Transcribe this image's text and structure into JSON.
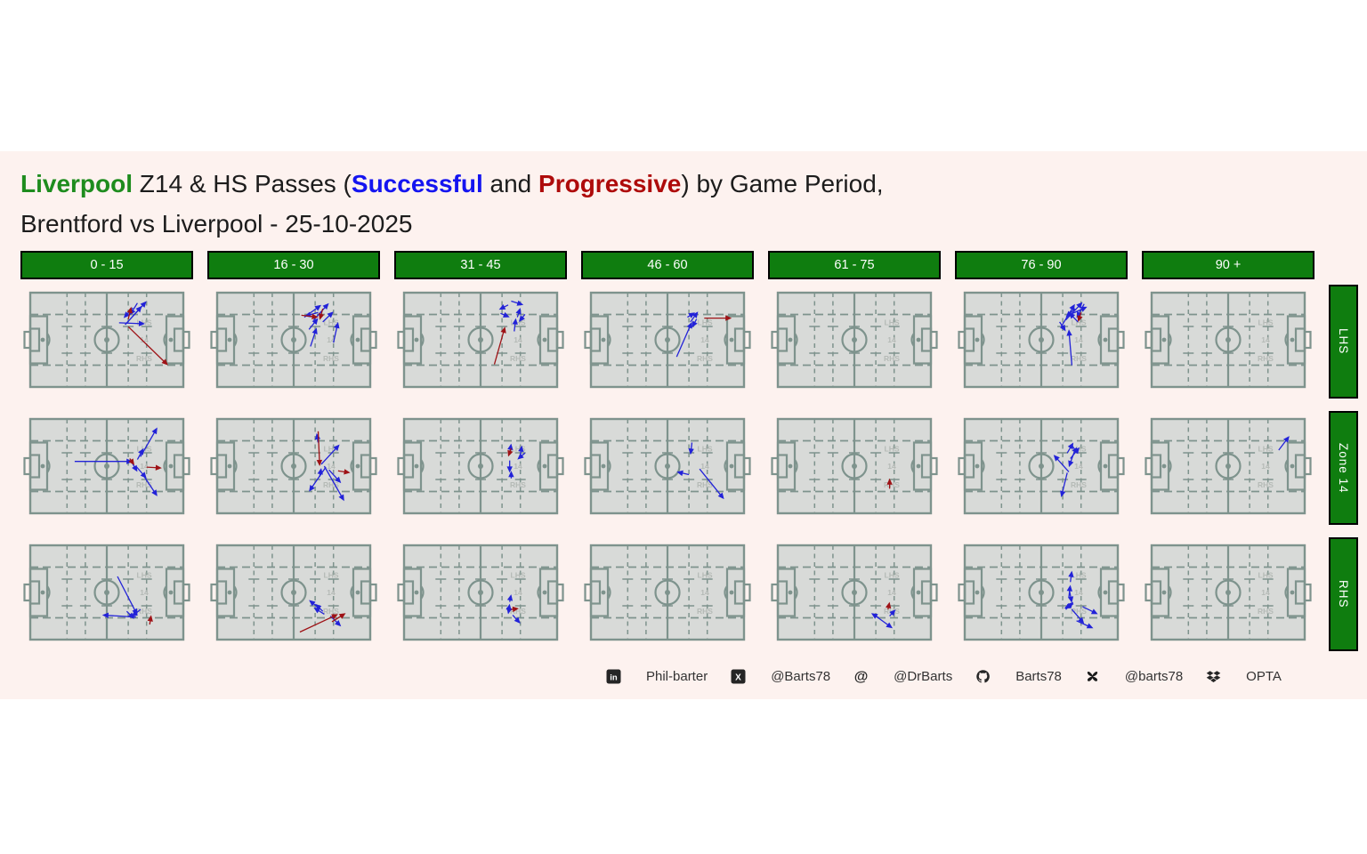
{
  "title": {
    "team": "Liverpool",
    "middle": " Z14 & HS Passes (",
    "successful": "Successful",
    "and": " and ",
    "progressive": "Progressive",
    "tail": ") by Game Period,",
    "line2": "Brentford vs Liverpool - 25-10-2025"
  },
  "colors": {
    "figure_bg": "#fdf2ef",
    "box_green": "#0f7d0f",
    "title_green": "#1e8c1e",
    "title_blue": "#1414f0",
    "title_red": "#ae0b0b",
    "pass_blue": "#2222d8",
    "pass_red": "#9e1216",
    "pitch_fill": "#d8dad8",
    "pitch_line": "#7e938d",
    "zone_label": "#b5bab6",
    "footer_text": "#333333"
  },
  "footer": [
    {
      "icon": "linkedin",
      "label": "Phil-barter"
    },
    {
      "icon": "x",
      "label": "@Barts78"
    },
    {
      "icon": "mastodon",
      "label": "@DrBarts"
    },
    {
      "icon": "github",
      "label": "Barts78"
    },
    {
      "icon": "bluesky",
      "label": "@barts78"
    },
    {
      "icon": "dropbox",
      "label": "OPTA"
    }
  ],
  "chart_data": {
    "type": "pass_map_grid",
    "title": "Liverpool Z14 & HS Passes (Successful and Progressive) by Game Period, Brentford vs Liverpool - 25-10-2025",
    "columns": [
      "0 - 15",
      "16 - 30",
      "31 - 45",
      "46 - 60",
      "61 - 75",
      "76 - 90",
      "90 +"
    ],
    "rows": [
      "LHS",
      "Zone 14",
      "RHS"
    ],
    "zone_labels": [
      "LHS",
      "14",
      "RHS"
    ],
    "legend": {
      "successful_color": "blue",
      "progressive_color": "dark_red"
    },
    "coords_note": "pass segments [x1,y1,x2,y2] in % of pitch, origin top-left, attack left-to-right",
    "cells": [
      {
        "row": "LHS",
        "col": "0 - 15",
        "successful": [
          [
            62,
            34,
            76,
            9
          ],
          [
            67,
            16,
            61,
            27
          ],
          [
            70,
            11,
            65,
            24
          ],
          [
            58,
            32,
            75,
            33
          ],
          [
            67,
            25,
            73,
            14
          ]
        ],
        "progressive": [
          [
            64,
            36,
            90,
            77
          ],
          [
            64,
            28,
            66,
            15
          ]
        ]
      },
      {
        "row": "LHS",
        "col": "16 - 30",
        "successful": [
          [
            61,
            57,
            65,
            37
          ],
          [
            76,
            53,
            79,
            31
          ],
          [
            57,
            26,
            68,
            13
          ],
          [
            63,
            29,
            73,
            11
          ],
          [
            69,
            31,
            76,
            20
          ],
          [
            60,
            39,
            66,
            27
          ],
          [
            66,
            21,
            57,
            25
          ]
        ],
        "progressive": [
          [
            55,
            24,
            66,
            26
          ],
          [
            69,
            17,
            67,
            29
          ]
        ]
      },
      {
        "row": "LHS",
        "col": "31 - 45",
        "successful": [
          [
            68,
            13,
            62,
            18
          ],
          [
            70,
            9,
            78,
            13
          ],
          [
            74,
            26,
            76,
            16
          ],
          [
            72,
            41,
            73,
            27
          ],
          [
            63,
            22,
            69,
            26
          ],
          [
            79,
            23,
            75,
            31
          ]
        ],
        "progressive": [
          [
            59,
            76,
            66,
            36
          ]
        ]
      },
      {
        "row": "LHS",
        "col": "46 - 60",
        "successful": [
          [
            56,
            68,
            66,
            31
          ],
          [
            65,
            31,
            70,
            20
          ],
          [
            69,
            28,
            66,
            37
          ],
          [
            63,
            26,
            68,
            21
          ]
        ],
        "progressive": [
          [
            74,
            27,
            92,
            27
          ]
        ]
      },
      {
        "row": "LHS",
        "col": "61 - 75",
        "successful": [],
        "progressive": []
      },
      {
        "row": "LHS",
        "col": "76 - 90",
        "successful": [
          [
            70,
            77,
            68,
            39
          ],
          [
            63,
            36,
            72,
            12
          ],
          [
            66,
            29,
            77,
            10
          ],
          [
            69,
            23,
            80,
            15
          ],
          [
            74,
            31,
            68,
            21
          ],
          [
            62,
            31,
            66,
            41
          ],
          [
            72,
            17,
            66,
            26
          ],
          [
            78,
            12,
            73,
            27
          ]
        ],
        "progressive": [
          [
            76,
            21,
            74,
            31
          ]
        ]
      },
      {
        "row": "LHS",
        "col": "90 +",
        "successful": [],
        "progressive": []
      },
      {
        "row": "Zone 14",
        "col": "0 - 15",
        "successful": [
          [
            29,
            45,
            67,
            45
          ],
          [
            72,
            40,
            83,
            9
          ],
          [
            70,
            43,
            74,
            31
          ],
          [
            69,
            50,
            76,
            63
          ],
          [
            74,
            60,
            83,
            82
          ],
          [
            66,
            45,
            70,
            56
          ]
        ],
        "progressive": [
          [
            76,
            51,
            86,
            52
          ],
          [
            65,
            42,
            68,
            49
          ]
        ]
      },
      {
        "row": "Zone 14",
        "col": "16 - 30",
        "successful": [
          [
            66,
            25,
            65,
            15
          ],
          [
            68,
            48,
            80,
            27
          ],
          [
            71,
            51,
            60,
            77
          ],
          [
            70,
            50,
            83,
            87
          ],
          [
            73,
            54,
            81,
            68
          ],
          [
            67,
            61,
            68,
            52
          ]
        ],
        "progressive": [
          [
            66,
            13,
            67,
            50
          ],
          [
            79,
            55,
            87,
            57
          ]
        ]
      },
      {
        "row": "Zone 14",
        "col": "31 - 45",
        "successful": [
          [
            69,
            37,
            70,
            26
          ],
          [
            76,
            38,
            77,
            28
          ],
          [
            79,
            36,
            74,
            43
          ],
          [
            70,
            63,
            70,
            55
          ],
          [
            69,
            44,
            69,
            57
          ]
        ],
        "progressive": [
          [
            70,
            31,
            68,
            40
          ]
        ]
      },
      {
        "row": "Zone 14",
        "col": "46 - 60",
        "successful": [
          [
            66,
            25,
            65,
            38
          ],
          [
            64,
            59,
            56,
            56
          ],
          [
            71,
            53,
            87,
            85
          ]
        ],
        "progressive": []
      },
      {
        "row": "Zone 14",
        "col": "61 - 75",
        "successful": [],
        "progressive": [
          [
            73,
            74,
            73,
            63
          ]
        ]
      },
      {
        "row": "Zone 14",
        "col": "76 - 90",
        "successful": [
          [
            67,
            36,
            71,
            25
          ],
          [
            69,
            42,
            75,
            30
          ],
          [
            68,
            56,
            58,
            38
          ],
          [
            67,
            57,
            63,
            83
          ],
          [
            72,
            33,
            68,
            51
          ],
          [
            70,
            28,
            74,
            37
          ]
        ],
        "progressive": []
      },
      {
        "row": "Zone 14",
        "col": "90 +",
        "successful": [
          [
            83,
            33,
            90,
            18
          ]
        ],
        "progressive": []
      },
      {
        "row": "RHS",
        "col": "0 - 15",
        "successful": [
          [
            57,
            33,
            70,
            74
          ],
          [
            69,
            76,
            47,
            74
          ],
          [
            63,
            70,
            68,
            78
          ],
          [
            72,
            68,
            66,
            76
          ]
        ],
        "progressive": [
          [
            78,
            84,
            79,
            74
          ]
        ]
      },
      {
        "row": "RHS",
        "col": "16 - 30",
        "successful": [
          [
            66,
            66,
            60,
            58
          ],
          [
            69,
            70,
            64,
            62
          ],
          [
            70,
            73,
            63,
            66
          ],
          [
            74,
            75,
            81,
            86
          ]
        ],
        "progressive": [
          [
            54,
            92,
            79,
            73
          ],
          [
            75,
            81,
            84,
            72
          ]
        ]
      },
      {
        "row": "RHS",
        "col": "31 - 45",
        "successful": [
          [
            69,
            60,
            70,
            52
          ],
          [
            68,
            72,
            69,
            62
          ],
          [
            71,
            74,
            76,
            83
          ],
          [
            69,
            64,
            68,
            73
          ]
        ],
        "progressive": [
          [
            70,
            68,
            75,
            67
          ]
        ]
      },
      {
        "row": "RHS",
        "col": "46 - 60",
        "successful": [],
        "progressive": []
      },
      {
        "row": "RHS",
        "col": "61 - 75",
        "successful": [
          [
            66,
            77,
            61,
            72
          ],
          [
            63,
            74,
            75,
            88
          ],
          [
            73,
            75,
            77,
            68
          ]
        ],
        "progressive": [
          [
            72,
            68,
            73,
            60
          ]
        ]
      },
      {
        "row": "RHS",
        "col": "76 - 90",
        "successful": [
          [
            69,
            39,
            70,
            27
          ],
          [
            68,
            55,
            69,
            42
          ],
          [
            71,
            62,
            65,
            67
          ],
          [
            66,
            68,
            71,
            60
          ],
          [
            70,
            68,
            78,
            83
          ],
          [
            73,
            80,
            84,
            88
          ],
          [
            77,
            65,
            87,
            73
          ],
          [
            68,
            45,
            70,
            61
          ]
        ],
        "progressive": []
      },
      {
        "row": "RHS",
        "col": "90 +",
        "successful": [],
        "progressive": []
      }
    ]
  }
}
